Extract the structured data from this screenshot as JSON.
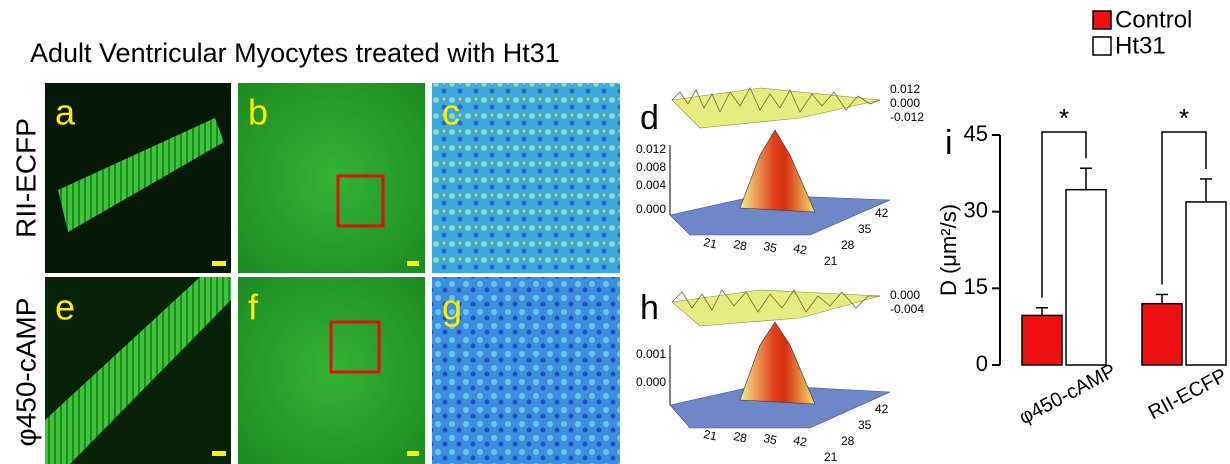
{
  "figure": {
    "title": "Adult Ventricular Myocytes treated with Ht31",
    "row_labels": [
      "RII-ECFP",
      "φ450-cAMP"
    ],
    "panel_labels": [
      "a",
      "b",
      "c",
      "d",
      "e",
      "f",
      "g",
      "h"
    ],
    "surface_d": {
      "z_top": [
        "0.012",
        "0.000",
        "-0.012"
      ],
      "z_side": [
        "0.012",
        "0.008",
        "0.004",
        "0.000"
      ],
      "x": [
        "21",
        "28",
        "35",
        "42"
      ],
      "y": [
        "42",
        "35",
        "28",
        "21"
      ]
    },
    "surface_h": {
      "z_top": [
        "0.000",
        "-0.004"
      ],
      "z_side": [
        "0.001",
        "0.000"
      ],
      "x": [
        "21",
        "28",
        "35",
        "42"
      ],
      "y": [
        "42",
        "35",
        "28",
        "21"
      ]
    }
  },
  "chart_data": {
    "type": "bar",
    "panel_label": "i",
    "ylabel": "D (μm²/s)",
    "categories": [
      "φ450-cAMP",
      "RII-ECFP"
    ],
    "series": [
      {
        "name": "Control",
        "color": "#ee1111",
        "values": [
          9.7,
          12.0
        ],
        "errors": [
          1.5,
          1.8
        ]
      },
      {
        "name": "Ht31",
        "color": "#ffffff",
        "values": [
          34.3,
          31.9
        ],
        "errors": [
          4.2,
          4.5
        ]
      }
    ],
    "annotations": [
      "*",
      "*"
    ],
    "ylim": [
      0,
      45
    ],
    "yticks": [
      0,
      15,
      30,
      45
    ],
    "legend": "top-right"
  }
}
